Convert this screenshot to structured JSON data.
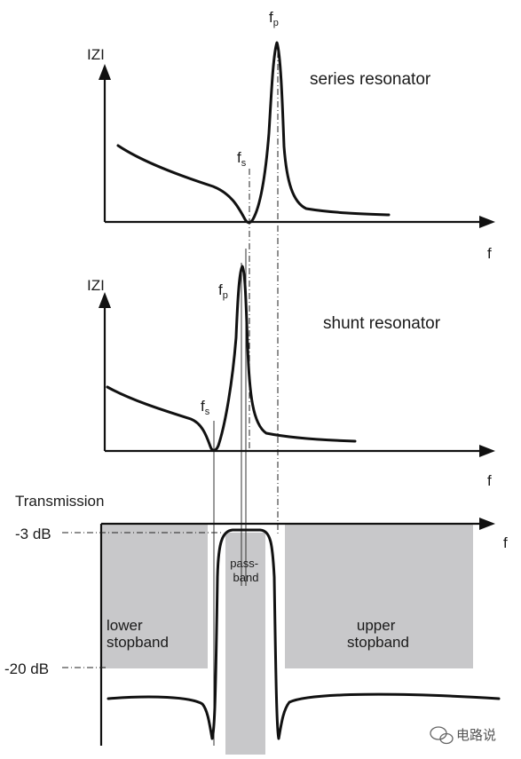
{
  "panels": {
    "series": {
      "y_axis_label": "IZI",
      "x_axis_label": "f",
      "title": "series resonator",
      "fs_main": "f",
      "fs_sub": "s",
      "fp_main": "f",
      "fp_sub": "p"
    },
    "shunt": {
      "y_axis_label": "IZI",
      "x_axis_label": "f",
      "title": "shunt resonator",
      "fs_main": "f",
      "fs_sub": "s",
      "fp_main": "f",
      "fp_sub": "p"
    },
    "transmission": {
      "y_axis_label": "Transmission",
      "x_axis_label": "f",
      "level_3db": "-3 dB",
      "level_20db": "-20 dB",
      "passband_line1": "pass-",
      "passband_line2": "band",
      "lower_line1": "lower",
      "lower_line2": "stopband",
      "upper_line1": "upper",
      "upper_line2": "stopband"
    }
  },
  "watermark": "电路说",
  "colors": {
    "stopband_fill": "#c8c8ca",
    "curve": "#111111",
    "background": "#ffffff"
  }
}
